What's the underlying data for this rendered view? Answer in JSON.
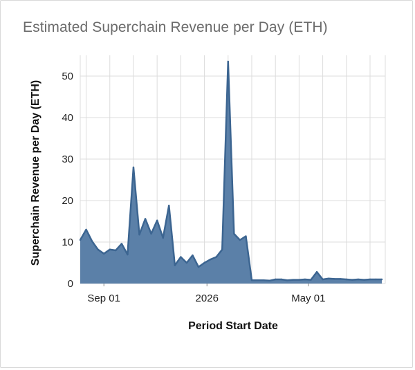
{
  "chart_title": "Estimated Superchain Revenue per Day (ETH)",
  "colors": {
    "area_fill": "#5b80a8",
    "line": "#3c6591",
    "grid": "#dcdcdc",
    "title": "#6b6b6b"
  },
  "chart_data": {
    "type": "area",
    "title": "Estimated Superchain Revenue per Day (ETH)",
    "xlabel": "Period Start Date",
    "ylabel": "Superchain Revenue per Day (ETH)",
    "x_ticks": [
      {
        "date": "2025-09-01",
        "label": "Sep 01"
      },
      {
        "date": "2026-01-01",
        "label": "2026"
      },
      {
        "date": "2026-05-01",
        "label": "May 01"
      }
    ],
    "y_ticks": [
      0,
      10,
      20,
      30,
      40,
      50
    ],
    "xlim": [
      "2025-08-04",
      "2026-07-31"
    ],
    "ylim": [
      0,
      55
    ],
    "grid": true,
    "x": [
      "2025-08-04",
      "2025-08-11",
      "2025-08-18",
      "2025-08-25",
      "2025-09-01",
      "2025-09-08",
      "2025-09-15",
      "2025-09-22",
      "2025-09-29",
      "2025-10-06",
      "2025-10-13",
      "2025-10-20",
      "2025-10-27",
      "2025-11-03",
      "2025-11-10",
      "2025-11-17",
      "2025-11-24",
      "2025-12-01",
      "2025-12-08",
      "2025-12-15",
      "2025-12-22",
      "2025-12-29",
      "2026-01-05",
      "2026-01-12",
      "2026-01-19",
      "2026-01-26",
      "2026-02-02",
      "2026-02-09",
      "2026-02-16",
      "2026-02-23",
      "2026-03-02",
      "2026-03-09",
      "2026-03-16",
      "2026-03-23",
      "2026-03-30",
      "2026-04-06",
      "2026-04-13",
      "2026-04-20",
      "2026-04-27",
      "2026-05-04",
      "2026-05-11",
      "2026-05-18",
      "2026-05-25",
      "2026-06-01",
      "2026-06-08",
      "2026-06-15",
      "2026-06-22",
      "2026-06-29",
      "2026-07-06",
      "2026-07-13",
      "2026-07-20",
      "2026-07-27"
    ],
    "values": [
      10.5,
      13.0,
      10.2,
      8.2,
      7.2,
      8.2,
      8.0,
      9.6,
      7.0,
      28.0,
      11.8,
      15.6,
      12.0,
      15.2,
      11.0,
      18.8,
      4.4,
      6.4,
      5.0,
      6.8,
      4.0,
      5.0,
      5.8,
      6.4,
      8.2,
      53.5,
      12.0,
      10.5,
      11.4,
      0.8,
      0.8,
      0.8,
      0.7,
      1.0,
      1.0,
      0.8,
      0.9,
      0.9,
      1.0,
      0.9,
      2.8,
      1.0,
      1.2,
      1.1,
      1.1,
      1.0,
      0.9,
      1.0,
      0.9,
      1.0,
      1.0,
      1.0
    ]
  }
}
